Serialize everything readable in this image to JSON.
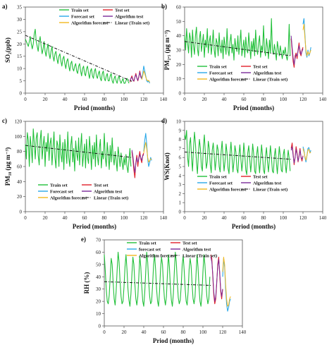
{
  "colors": {
    "train": "#22c03a",
    "test": "#e0202a",
    "forecast": "#29a8e8",
    "algtest": "#7a2a9a",
    "algforecast": "#f2b81e",
    "linear": "#111111"
  },
  "chart_data": [
    {
      "id": "a",
      "type": "line",
      "panel_label": "a)",
      "xlabel": "Priod (months)",
      "ylabel": "SO₂(ppb)",
      "xlim": [
        0,
        140
      ],
      "ylim": [
        0,
        35
      ],
      "xticks": [
        0,
        20,
        40,
        60,
        80,
        100,
        120,
        140
      ],
      "yticks": [
        0,
        5,
        10,
        15,
        20,
        25,
        30,
        35
      ],
      "legend": [
        "Train set",
        "Test set",
        "Forecast set",
        "Algorithm test",
        "Algorithm forecast",
        "Linear (Train set)"
      ],
      "train": [
        22,
        21,
        20,
        19,
        21,
        23,
        20,
        18,
        20,
        24,
        26,
        21,
        19,
        17,
        21,
        23,
        19,
        16,
        18,
        21,
        17,
        15,
        18,
        20,
        16,
        14,
        17,
        19,
        15,
        13,
        16,
        17,
        14,
        12,
        15,
        16,
        13,
        11,
        14,
        15,
        12,
        10,
        13,
        14,
        11,
        9,
        12,
        13,
        10,
        9,
        11,
        12,
        9,
        8,
        11,
        12,
        9,
        7,
        10,
        11,
        8,
        7,
        10,
        11,
        8,
        6,
        9,
        10,
        7,
        6,
        9,
        10,
        7,
        6,
        8,
        9,
        6,
        5,
        8,
        9,
        6,
        5,
        7,
        8,
        5,
        5,
        7,
        8,
        5,
        4,
        6,
        7,
        5,
        4,
        6,
        7,
        5,
        4,
        5,
        6,
        4,
        4,
        5,
        6,
        5,
        4
      ],
      "test": [
        4.5,
        6,
        7,
        5.5,
        4.8,
        6.5,
        8,
        6.2,
        5,
        6.5,
        9,
        7,
        6
      ],
      "algtest": [
        5,
        6,
        6.5,
        5.2,
        5,
        6.5,
        7.5,
        6,
        5.2,
        6.8,
        8.5,
        6.5,
        5.8
      ],
      "forecast": [
        6,
        8,
        11,
        9,
        7,
        5,
        4.5,
        5,
        4
      ],
      "algforecast": [
        5.5,
        7,
        9,
        8,
        6.5,
        5.5,
        5,
        5.2,
        4.5
      ],
      "linear": {
        "x": [
          0,
          108
        ],
        "y": [
          23.5,
          4.8
        ]
      }
    },
    {
      "id": "b",
      "type": "line",
      "panel_label": "b)",
      "xlabel": "Priod (months)",
      "ylabel": "PM₂.₅ (μg m⁻³)",
      "xlim": [
        0,
        140
      ],
      "ylim": [
        0,
        60
      ],
      "xticks": [
        0,
        20,
        40,
        60,
        80,
        100,
        120,
        140
      ],
      "yticks": [
        0,
        10,
        20,
        30,
        40,
        50,
        60
      ],
      "legend": [
        "Train set",
        "Test set",
        "Forecast set",
        "Algorithm test",
        "Algorithm forecast",
        "Linear (Train set)"
      ],
      "train": [
        40,
        30,
        45,
        35,
        28,
        42,
        38,
        25,
        44,
        33,
        27,
        40,
        46,
        31,
        26,
        38,
        43,
        29,
        35,
        41,
        25,
        37,
        32,
        45,
        28,
        36,
        40,
        27,
        34,
        44,
        30,
        25,
        38,
        35,
        26,
        42,
        31,
        28,
        37,
        24,
        39,
        33,
        27,
        45,
        30,
        26,
        36,
        41,
        28,
        34,
        23,
        38,
        32,
        29,
        40,
        27,
        35,
        44,
        26,
        31,
        37,
        25,
        39,
        30,
        28,
        42,
        33,
        24,
        36,
        29,
        38,
        26,
        44,
        31,
        27,
        35,
        40,
        25,
        33,
        29,
        47,
        30,
        26,
        38,
        32,
        24,
        37,
        28,
        52,
        30,
        27,
        34,
        29,
        23,
        36,
        31,
        26,
        33,
        28,
        24,
        30,
        27,
        32,
        26,
        23,
        29,
        48,
        26
      ],
      "test": [
        38,
        30,
        22,
        18,
        26,
        28,
        24,
        30,
        35,
        28,
        26,
        30,
        32
      ],
      "algtest": [
        40,
        32,
        25,
        20,
        24,
        27,
        26,
        29,
        33,
        30,
        27,
        29,
        31
      ],
      "forecast": [
        48,
        52,
        40,
        28,
        25,
        30,
        26,
        28,
        32
      ],
      "algforecast": [
        44,
        48,
        38,
        30,
        26,
        29,
        27,
        28,
        30
      ],
      "linear": {
        "x": [
          0,
          108
        ],
        "y": [
          36,
          26
        ]
      }
    },
    {
      "id": "c",
      "type": "line",
      "panel_label": "c)",
      "xlabel": "Period (months)",
      "ylabel": "PM₁₀ (μg m⁻³)",
      "xlim": [
        0,
        140
      ],
      "ylim": [
        0,
        120
      ],
      "xticks": [
        0,
        20,
        40,
        60,
        80,
        100,
        120,
        140
      ],
      "yticks": [
        0,
        20,
        40,
        60,
        80,
        100,
        120
      ],
      "legend": [
        "Train set",
        "Test set",
        "Forecast set",
        "Algorithm test",
        "Algorithm forecast",
        "Linear (Train set)"
      ],
      "train": [
        90,
        70,
        105,
        95,
        60,
        100,
        85,
        65,
        110,
        92,
        70,
        98,
        105,
        75,
        62,
        95,
        108,
        70,
        88,
        100,
        60,
        92,
        80,
        104,
        68,
        90,
        98,
        62,
        84,
        106,
        72,
        58,
        94,
        88,
        60,
        102,
        76,
        66,
        92,
        56,
        96,
        82,
        64,
        106,
        72,
        60,
        88,
        100,
        66,
        84,
        54,
        94,
        78,
        68,
        98,
        62,
        86,
        104,
        60,
        76,
        90,
        58,
        96,
        72,
        64,
        100,
        80,
        56,
        88,
        70,
        92,
        60,
        102,
        74,
        62,
        84,
        96,
        58,
        80,
        70,
        104,
        72,
        60,
        92,
        76,
        56,
        88,
        66,
        98,
        72,
        62,
        80,
        68,
        54,
        86,
        74,
        60,
        78,
        66,
        56,
        72,
        62,
        76,
        60,
        52,
        68,
        84,
        60
      ],
      "test": [
        80,
        70,
        55,
        45,
        65,
        75,
        60,
        72,
        80,
        70,
        65,
        75,
        78
      ],
      "algtest": [
        82,
        74,
        62,
        52,
        64,
        72,
        66,
        70,
        76,
        72,
        68,
        74,
        76
      ],
      "forecast": [
        80,
        95,
        104,
        90,
        70,
        60,
        65,
        72,
        68
      ],
      "algforecast": [
        78,
        86,
        92,
        84,
        72,
        66,
        68,
        70,
        70
      ],
      "linear": {
        "x": [
          0,
          108
        ],
        "y": [
          88,
          72
        ]
      }
    },
    {
      "id": "d",
      "type": "line",
      "panel_label": "d)",
      "xlabel": "Period (months)",
      "ylabel": "WS(Knot)",
      "xlim": [
        0,
        140
      ],
      "ylim": [
        0,
        10
      ],
      "xticks": [
        0,
        20,
        40,
        60,
        80,
        100,
        120,
        140
      ],
      "yticks": [
        0,
        1,
        2,
        3,
        4,
        5,
        6,
        7,
        8,
        9,
        10
      ],
      "legend": [
        "Train set",
        "Test set",
        "Forecast set",
        "Algorithm test",
        "Algorithm forecast",
        "Linear (Train set)"
      ],
      "train": [
        8.5,
        8,
        9,
        6,
        5,
        7.5,
        8.2,
        6,
        4.5,
        7,
        8.8,
        7.5,
        5.5,
        4.2,
        6.5,
        8,
        7,
        5,
        4.5,
        7.2,
        8.5,
        6.5,
        4.8,
        5.5,
        7.8,
        7,
        5.2,
        4.3,
        6.8,
        7.6,
        6.2,
        4.6,
        5.8,
        7.4,
        6.8,
        5,
        4.4,
        6.6,
        7.8,
        6,
        4.5,
        5.6,
        7.5,
        6.5,
        4.8,
        4.2,
        6.4,
        7.7,
        6.1,
        4.4,
        5.5,
        7.3,
        6.6,
        4.7,
        4.3,
        6.2,
        7.4,
        5.9,
        4.5,
        5.6,
        7.6,
        6.3,
        4.6,
        4.1,
        6.5,
        7.3,
        5.8,
        4.4,
        5.7,
        7.5,
        6.4,
        4.5,
        4.2,
        6.3,
        7.2,
        5.6,
        4.3,
        5.8,
        7.4,
        6.2,
        4.6,
        4.2,
        6.1,
        7.1,
        5.5,
        4.4,
        5.9,
        7.3,
        6,
        4.5,
        4.3,
        6.2,
        7,
        5.4,
        4.2,
        5.8,
        7.2,
        6.1,
        4.6,
        4.4,
        6.3,
        6.9,
        5.3,
        4.3,
        5.6,
        6.8,
        5.9,
        4.5
      ],
      "test": [
        7,
        7.6,
        6.4,
        5.2,
        6,
        7.2,
        6.5,
        5.5,
        6.2,
        7,
        6,
        5.6,
        6.2
      ],
      "algtest": [
        6.8,
        7.2,
        6.2,
        5.4,
        6,
        6.9,
        6.3,
        5.6,
        6.1,
        6.8,
        6.1,
        5.8,
        6.1
      ],
      "forecast": [
        7.2,
        6.8,
        6,
        5.5,
        6.2,
        7,
        7.1,
        6.5,
        6.8
      ],
      "algforecast": [
        7,
        6.6,
        6.1,
        5.7,
        6.2,
        6.8,
        6.9,
        6.5,
        6.6
      ],
      "linear": {
        "x": [
          0,
          108
        ],
        "y": [
          6.6,
          5.8
        ]
      }
    },
    {
      "id": "e",
      "type": "line",
      "panel_label": "e)",
      "xlabel": "Priod (months)",
      "ylabel": "RH (%)",
      "xlim": [
        0,
        140
      ],
      "ylim": [
        0,
        70
      ],
      "xticks": [
        0,
        20,
        40,
        60,
        80,
        100,
        120,
        140
      ],
      "yticks": [
        0,
        10,
        20,
        30,
        40,
        50,
        60,
        70
      ],
      "legend": [
        "Train set",
        "Test set",
        "forecast set",
        "Algorithm test",
        "Algorithm forecast",
        "Linear (Train set)"
      ],
      "train": [
        58,
        45,
        30,
        20,
        18,
        25,
        40,
        55,
        50,
        35,
        22,
        17,
        28,
        45,
        60,
        52,
        36,
        24,
        18,
        20,
        32,
        48,
        58,
        46,
        30,
        21,
        16,
        26,
        42,
        56,
        50,
        34,
        22,
        17,
        24,
        40,
        57,
        48,
        32,
        20,
        16,
        27,
        44,
        60,
        52,
        36,
        24,
        18,
        20,
        34,
        50,
        58,
        46,
        30,
        20,
        16,
        28,
        46,
        56,
        50,
        34,
        22,
        17,
        24,
        42,
        58,
        48,
        32,
        21,
        16,
        26,
        44,
        60,
        52,
        36,
        23,
        18,
        21,
        33,
        50,
        57,
        45,
        30,
        20,
        17,
        28,
        46,
        55,
        49,
        34,
        22,
        18,
        24,
        42,
        58,
        48,
        32,
        20,
        16,
        26,
        44,
        58,
        50,
        36,
        24,
        18,
        22,
        40
      ],
      "test": [
        58,
        55,
        40,
        25,
        18,
        22,
        35,
        50,
        56,
        42,
        28,
        22,
        30
      ],
      "algtest": [
        56,
        52,
        42,
        28,
        20,
        24,
        36,
        48,
        54,
        44,
        30,
        24,
        30
      ],
      "forecast": [
        40,
        55,
        48,
        30,
        18,
        12,
        15,
        20,
        22
      ],
      "algforecast": [
        44,
        56,
        50,
        34,
        22,
        16,
        17,
        22,
        24
      ],
      "linear": {
        "x": [
          0,
          108
        ],
        "y": [
          36,
          33
        ]
      }
    }
  ]
}
